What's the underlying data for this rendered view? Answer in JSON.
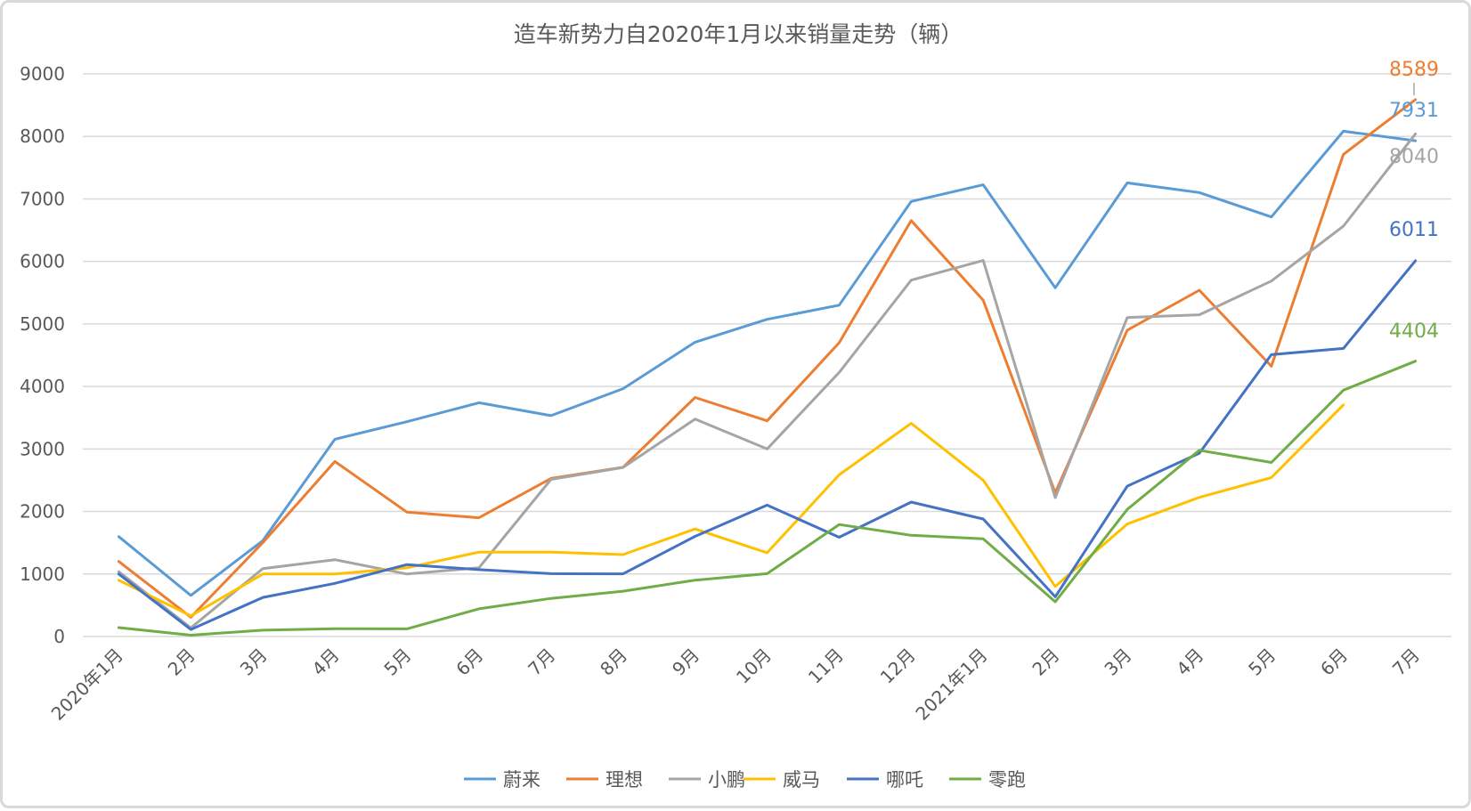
{
  "chart_data": {
    "type": "line",
    "title": "造车新势力自2020年1月以来销量走势（辆）",
    "xlabel": "",
    "ylabel": "",
    "categories": [
      "2020年1月",
      "2月",
      "3月",
      "4月",
      "5月",
      "6月",
      "7月",
      "8月",
      "9月",
      "10月",
      "11月",
      "12月",
      "2021年1月",
      "2月",
      "3月",
      "4月",
      "5月",
      "6月",
      "7月"
    ],
    "ylim": [
      0,
      9000
    ],
    "yticks": [
      "0",
      "1000",
      "2000",
      "3000",
      "4000",
      "5000",
      "6000",
      "7000",
      "8000",
      "9000"
    ],
    "grid": true,
    "legend_position": "bottom",
    "series": [
      {
        "name": "蔚来",
        "color": "#5b9bd5",
        "values": [
          1598,
          658,
          1533,
          3155,
          3436,
          3740,
          3533,
          3965,
          4708,
          5074,
          5300,
          6960,
          7225,
          5578,
          7257,
          7102,
          6711,
          8083,
          7931
        ],
        "end_label": "7931"
      },
      {
        "name": "理想",
        "color": "#ed7d31",
        "values": [
          1200,
          309,
          1503,
          2800,
          1990,
          1900,
          2529,
          2707,
          3823,
          3451,
          4700,
          6653,
          5379,
          2300,
          4900,
          5540,
          4323,
          7713,
          8589
        ],
        "end_label": "8589"
      },
      {
        "name": "小鹏",
        "color": "#a5a5a5",
        "values": [
          1037,
          138,
          1087,
          1229,
          1000,
          1100,
          2514,
          2704,
          3478,
          3000,
          4224,
          5700,
          6015,
          2223,
          5102,
          5147,
          5686,
          6565,
          8040
        ],
        "end_label": "8040"
      },
      {
        "name": "威马",
        "color": "#ffc000",
        "values": [
          900,
          330,
          1000,
          1000,
          1100,
          1350,
          1350,
          1310,
          1720,
          1340,
          2586,
          3410,
          2500,
          800,
          1800,
          2226,
          2542,
          3705,
          null
        ],
        "end_label": ""
      },
      {
        "name": "哪吒",
        "color": "#4472c4",
        "values": [
          1000,
          113,
          625,
          850,
          1150,
          1069,
          1006,
          1002,
          1602,
          2102,
          1588,
          2150,
          1880,
          635,
          2405,
          2932,
          4508,
          4608,
          6011
        ],
        "end_label": "6011"
      },
      {
        "name": "零跑",
        "color": "#70ad47",
        "values": [
          142,
          22,
          101,
          124,
          123,
          443,
          610,
          725,
          902,
          1005,
          1792,
          1619,
          1563,
          556,
          2034,
          2979,
          2784,
          3941,
          4404
        ],
        "end_label": "4404"
      }
    ]
  }
}
